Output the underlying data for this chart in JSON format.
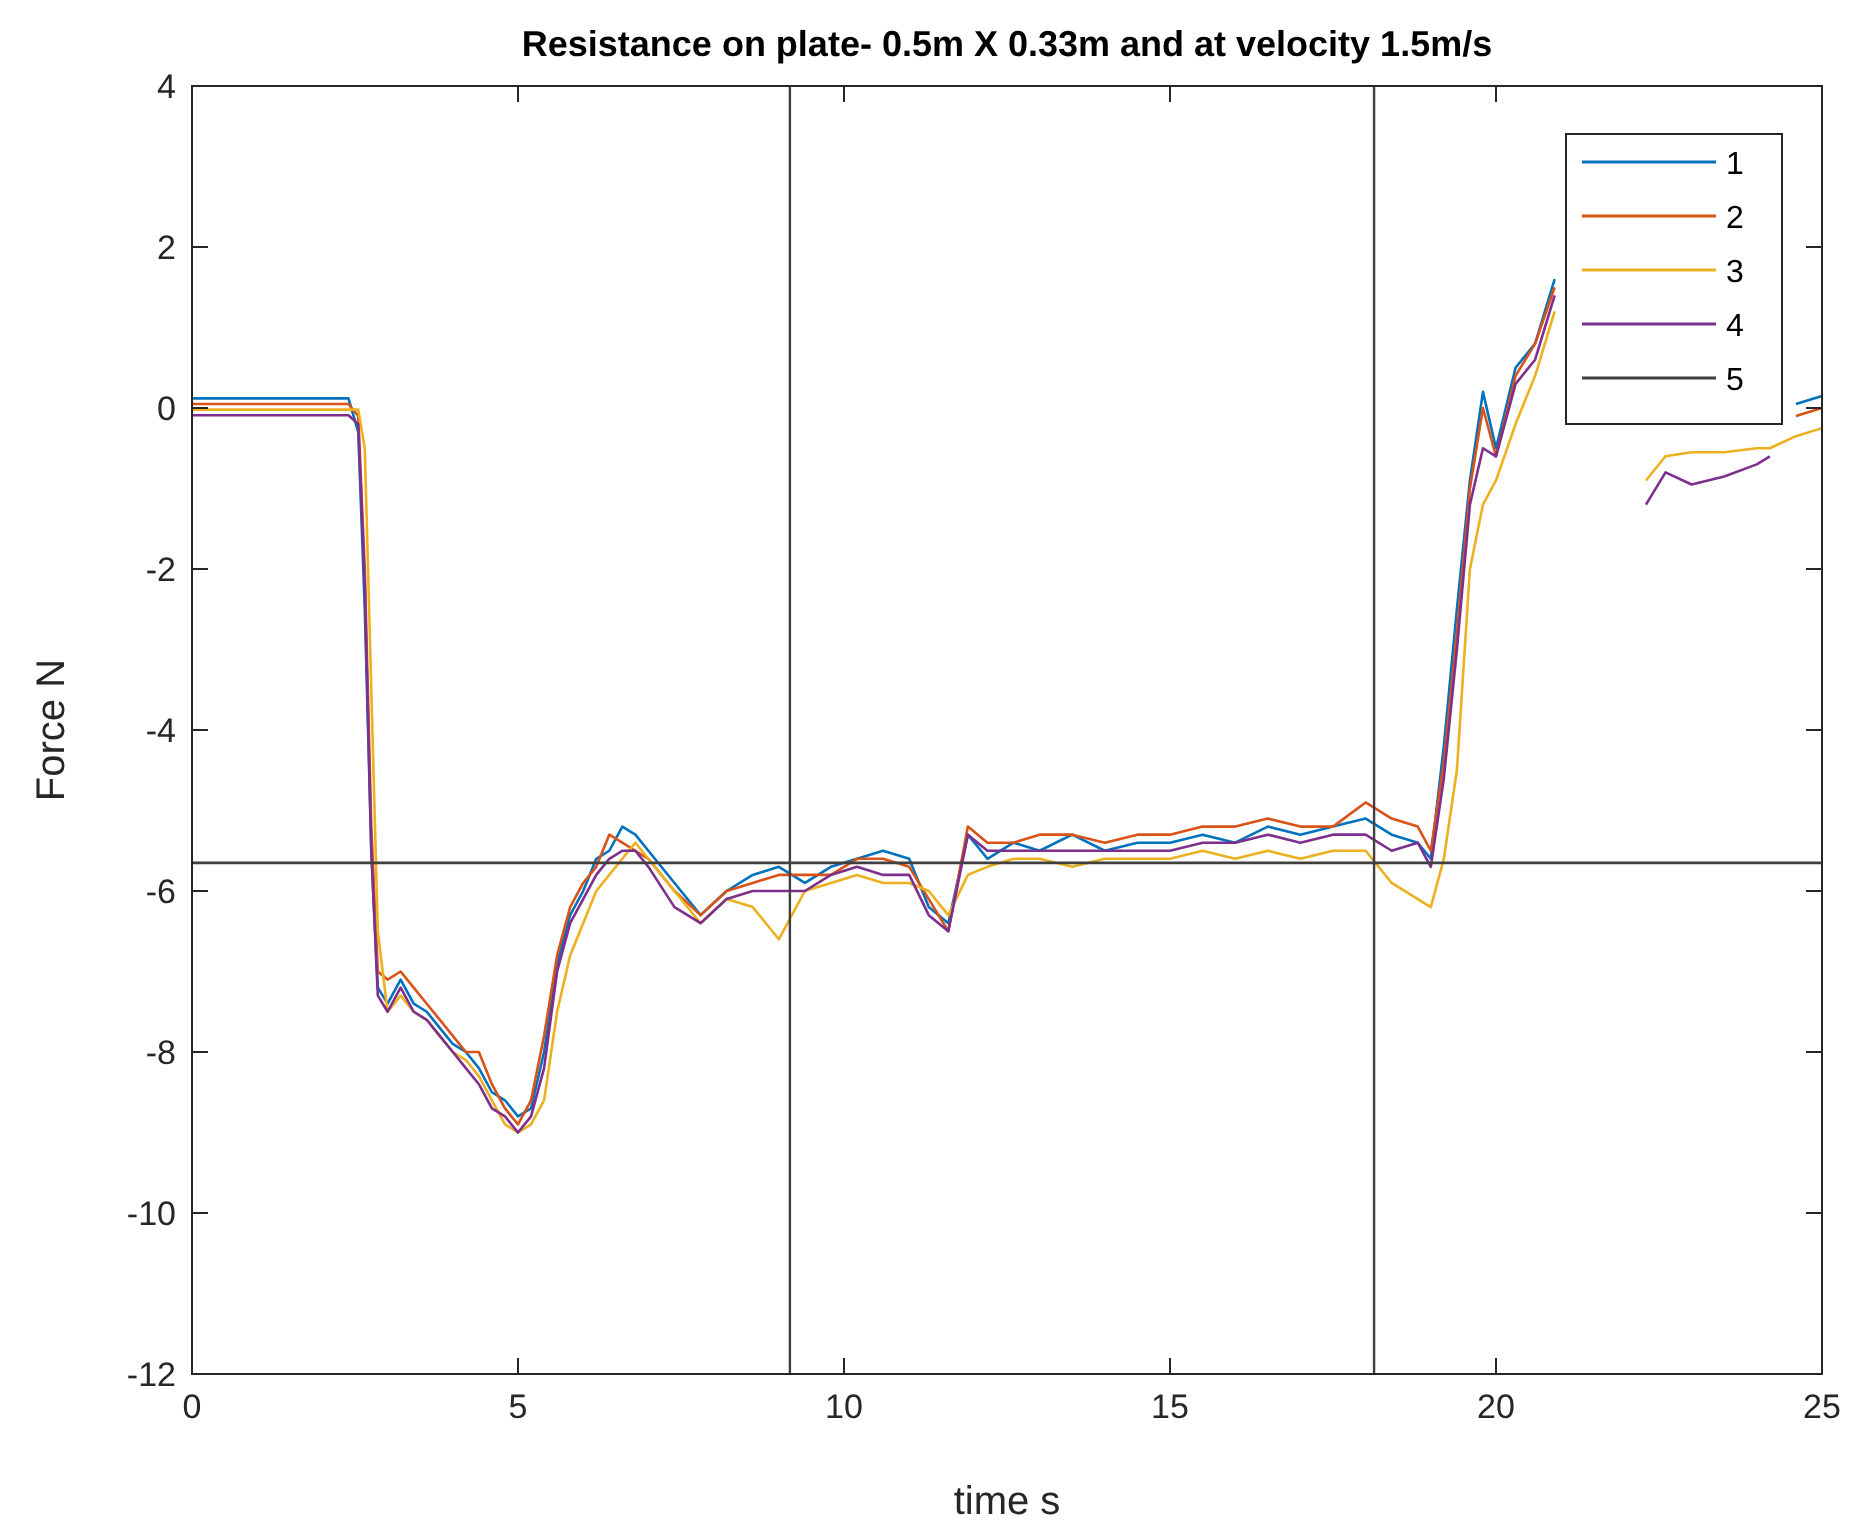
{
  "chart_data": {
    "type": "line",
    "title": "Resistance on plate- 0.5m X 0.33m and at velocity 1.5m/s",
    "xlabel": "time s",
    "ylabel": "Force N",
    "x": [
      0,
      1,
      2,
      2.4,
      2.55,
      2.65,
      2.75,
      2.85,
      3.0,
      3.2,
      3.4,
      3.6,
      3.8,
      4.0,
      4.2,
      4.4,
      4.6,
      4.8,
      5.0,
      5.2,
      5.4,
      5.6,
      5.8,
      6.0,
      6.2,
      6.4,
      6.6,
      6.8,
      7.0,
      7.4,
      7.8,
      8.2,
      8.6,
      9.0,
      9.4,
      9.8,
      10.2,
      10.6,
      11.0,
      11.3,
      11.6,
      11.9,
      12.2,
      12.6,
      13.0,
      13.5,
      14.0,
      14.5,
      15.0,
      15.5,
      16.0,
      16.5,
      17.0,
      17.5,
      18.0,
      18.4,
      18.8,
      19.0,
      19.2,
      19.4,
      19.6,
      19.8,
      20.0,
      20.3,
      20.6,
      20.9,
      21.1,
      22.3,
      22.6,
      23.0,
      23.5,
      24.0,
      24.2,
      24.6,
      25
    ],
    "series": [
      {
        "name": "1",
        "color": "#0072bd",
        "values": [
          0.12,
          0.12,
          0.12,
          0.12,
          -0.3,
          -2.5,
          -5.5,
          -7.2,
          -7.4,
          -7.1,
          -7.4,
          -7.5,
          -7.7,
          -7.9,
          -8.0,
          -8.2,
          -8.5,
          -8.6,
          -8.8,
          -8.7,
          -8.0,
          -6.9,
          -6.3,
          -6.0,
          -5.6,
          -5.5,
          -5.2,
          -5.3,
          -5.5,
          -5.9,
          -6.3,
          -6.0,
          -5.8,
          -5.7,
          -5.9,
          -5.7,
          -5.6,
          -5.5,
          -5.6,
          -6.2,
          -6.4,
          -5.3,
          -5.6,
          -5.4,
          -5.5,
          -5.3,
          -5.5,
          -5.4,
          -5.4,
          -5.3,
          -5.4,
          -5.2,
          -5.3,
          -5.2,
          -5.1,
          -5.3,
          -5.4,
          -5.6,
          -4.2,
          -2.5,
          -0.9,
          0.2,
          -0.5,
          0.5,
          0.8,
          1.6,
          null,
          null,
          null,
          null,
          null,
          null,
          null,
          0.05,
          0.15
        ]
      },
      {
        "name": "2",
        "color": "#d95319",
        "values": [
          0.05,
          0.05,
          0.05,
          0.05,
          -0.1,
          -2.0,
          -5.2,
          -7.0,
          -7.1,
          -7.0,
          -7.2,
          -7.4,
          -7.6,
          -7.8,
          -8.0,
          -8.0,
          -8.4,
          -8.7,
          -8.9,
          -8.6,
          -7.8,
          -6.8,
          -6.2,
          -5.9,
          -5.7,
          -5.3,
          -5.4,
          -5.5,
          -5.6,
          -6.0,
          -6.3,
          -6.0,
          -5.9,
          -5.8,
          -5.8,
          -5.8,
          -5.6,
          -5.6,
          -5.7,
          -6.1,
          -6.5,
          -5.2,
          -5.4,
          -5.4,
          -5.3,
          -5.3,
          -5.4,
          -5.3,
          -5.3,
          -5.2,
          -5.2,
          -5.1,
          -5.2,
          -5.2,
          -4.9,
          -5.1,
          -5.2,
          -5.5,
          -4.4,
          -2.8,
          -1.0,
          0.0,
          -0.6,
          0.4,
          0.8,
          1.5,
          null,
          null,
          null,
          null,
          null,
          null,
          null,
          -0.1,
          0.0
        ]
      },
      {
        "name": "3",
        "color": "#edb120",
        "values": [
          -0.02,
          -0.02,
          -0.02,
          -0.02,
          -0.02,
          -0.5,
          -3.5,
          -6.5,
          -7.5,
          -7.3,
          -7.5,
          -7.6,
          -7.8,
          -8.0,
          -8.1,
          -8.3,
          -8.6,
          -8.9,
          -9.0,
          -8.9,
          -8.6,
          -7.5,
          -6.8,
          -6.4,
          -6.0,
          -5.8,
          -5.6,
          -5.4,
          -5.6,
          -6.0,
          -6.4,
          -6.1,
          -6.2,
          -6.6,
          -6.0,
          -5.9,
          -5.8,
          -5.9,
          -5.9,
          -6.0,
          -6.3,
          -5.8,
          -5.7,
          -5.6,
          -5.6,
          -5.7,
          -5.6,
          -5.6,
          -5.6,
          -5.5,
          -5.6,
          -5.5,
          -5.6,
          -5.5,
          -5.5,
          -5.9,
          -6.1,
          -6.2,
          -5.6,
          -4.5,
          -2.0,
          -1.2,
          -0.9,
          -0.2,
          0.4,
          1.2,
          null,
          -0.9,
          -0.6,
          -0.55,
          -0.55,
          -0.5,
          -0.5,
          -0.35,
          -0.25
        ]
      },
      {
        "name": "4",
        "color": "#7e2f8e",
        "values": [
          -0.09,
          -0.09,
          -0.09,
          -0.09,
          -0.2,
          -2.2,
          -5.5,
          -7.3,
          -7.5,
          -7.2,
          -7.5,
          -7.6,
          -7.8,
          -8.0,
          -8.2,
          -8.4,
          -8.7,
          -8.8,
          -9.0,
          -8.8,
          -8.2,
          -7.0,
          -6.4,
          -6.1,
          -5.8,
          -5.6,
          -5.5,
          -5.5,
          -5.7,
          -6.2,
          -6.4,
          -6.1,
          -6.0,
          -6.0,
          -6.0,
          -5.8,
          -5.7,
          -5.8,
          -5.8,
          -6.3,
          -6.5,
          -5.3,
          -5.5,
          -5.5,
          -5.5,
          -5.5,
          -5.5,
          -5.5,
          -5.5,
          -5.4,
          -5.4,
          -5.3,
          -5.4,
          -5.3,
          -5.3,
          -5.5,
          -5.4,
          -5.7,
          -4.6,
          -3.0,
          -1.2,
          -0.5,
          -0.6,
          0.3,
          0.6,
          1.4,
          null,
          -1.2,
          -0.8,
          -0.95,
          -0.85,
          -0.7,
          -0.6,
          null,
          null
        ]
      },
      {
        "name": "5",
        "color": "#404040",
        "x": [
          0,
          25
        ],
        "values": [
          -5.65,
          -5.65
        ]
      }
    ],
    "ref_lines": [
      {
        "axis": "x",
        "value": 9.17,
        "color": "#404040"
      },
      {
        "axis": "x",
        "value": 18.13,
        "color": "#404040"
      }
    ],
    "xlim": [
      0,
      25
    ],
    "xticks": [
      0,
      5,
      10,
      15,
      20,
      25
    ],
    "ylim": [
      -12,
      4
    ],
    "yticks": [
      -12,
      -10,
      -8,
      -6,
      -4,
      -2,
      0,
      2,
      4
    ],
    "grid": false,
    "legend": "top right"
  }
}
